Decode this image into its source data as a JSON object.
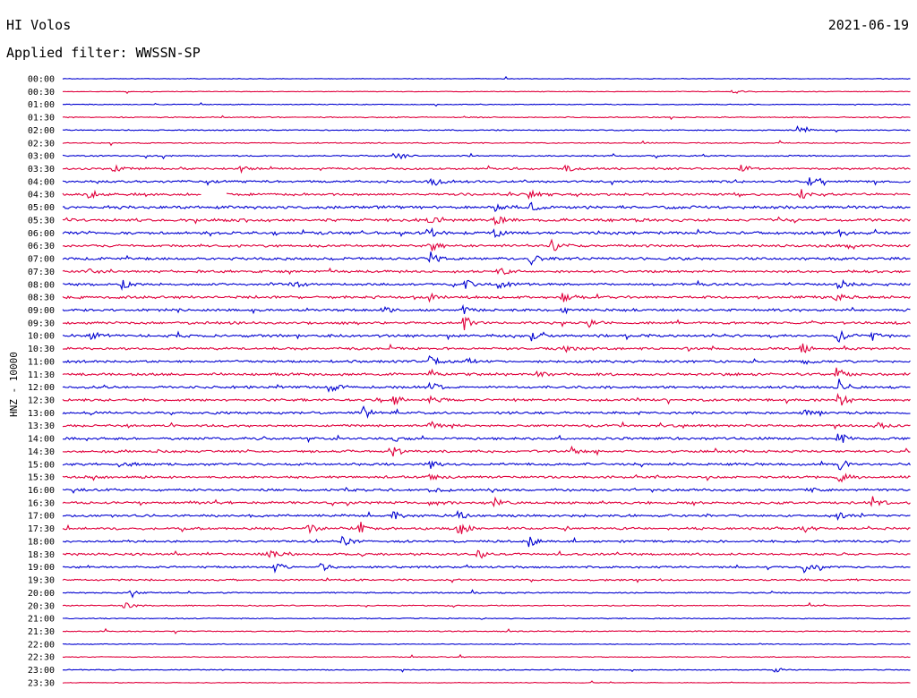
{
  "header": {
    "station": "HI Volos",
    "date": "2021-06-19",
    "filter": "Applied filter: WWSSN-SP"
  },
  "colors": {
    "even": "#0000d0",
    "odd": "#e0003c",
    "text": "#000000",
    "background": "#ffffff"
  },
  "chart_data": {
    "type": "line",
    "title": "HI Volos",
    "ylabel": "HNZ - 10000",
    "row_labels": [
      "00:00",
      "00:30",
      "01:00",
      "01:30",
      "02:00",
      "02:30",
      "03:00",
      "03:30",
      "04:00",
      "04:30",
      "05:00",
      "05:30",
      "06:00",
      "06:30",
      "07:00",
      "07:30",
      "08:00",
      "08:30",
      "09:00",
      "09:30",
      "10:00",
      "10:30",
      "11:00",
      "11:30",
      "12:00",
      "12:30",
      "13:00",
      "13:30",
      "14:00",
      "14:30",
      "15:00",
      "15:30",
      "16:00",
      "16:30",
      "17:00",
      "17:30",
      "18:00",
      "18:30",
      "19:00",
      "19:30",
      "20:00",
      "20:30",
      "21:00",
      "21:30",
      "22:00",
      "22:30",
      "23:00",
      "23:30"
    ],
    "row_duration_min": 30,
    "row_noise_level": [
      0.3,
      0.3,
      0.4,
      0.5,
      0.5,
      0.5,
      0.6,
      0.9,
      1.0,
      1.1,
      1.3,
      1.3,
      1.2,
      1.2,
      1.2,
      1.1,
      1.1,
      1.2,
      1.1,
      1.1,
      1.2,
      1.1,
      1.1,
      1.2,
      1.1,
      1.1,
      1.1,
      1.1,
      1.1,
      1.1,
      1.1,
      1.1,
      1.1,
      1.2,
      1.1,
      1.1,
      1.0,
      1.0,
      0.9,
      0.8,
      0.6,
      0.5,
      0.5,
      0.5,
      0.4,
      0.4,
      0.4,
      0.3
    ],
    "events": [
      {
        "row": "00:30",
        "t": 0.79,
        "amp": 3
      },
      {
        "row": "02:00",
        "t": 0.867,
        "amp": 5
      },
      {
        "row": "03:00",
        "t": 0.391,
        "amp": 7
      },
      {
        "row": "03:30",
        "t": 0.06,
        "amp": 4
      },
      {
        "row": "03:30",
        "t": 0.21,
        "amp": 4
      },
      {
        "row": "03:30",
        "t": 0.593,
        "amp": 5
      },
      {
        "row": "03:30",
        "t": 0.8,
        "amp": 4
      },
      {
        "row": "04:00",
        "t": 0.433,
        "amp": 7
      },
      {
        "row": "04:00",
        "t": 0.88,
        "amp": 5
      },
      {
        "row": "04:30",
        "t": 0.03,
        "amp": 6
      },
      {
        "row": "04:30",
        "t": 0.55,
        "amp": 5
      },
      {
        "row": "04:30",
        "t": 0.87,
        "amp": 6
      },
      {
        "row": "05:00",
        "t": 0.51,
        "amp": 6
      },
      {
        "row": "05:00",
        "t": 0.552,
        "amp": 5
      },
      {
        "row": "05:30",
        "t": 0.433,
        "amp": 5
      },
      {
        "row": "05:30",
        "t": 0.51,
        "amp": 6
      },
      {
        "row": "06:00",
        "t": 0.43,
        "amp": 8
      },
      {
        "row": "06:00",
        "t": 0.51,
        "amp": 5
      },
      {
        "row": "06:00",
        "t": 0.915,
        "amp": 5
      },
      {
        "row": "06:30",
        "t": 0.433,
        "amp": 7
      },
      {
        "row": "06:30",
        "t": 0.576,
        "amp": 6
      },
      {
        "row": "07:00",
        "t": 0.433,
        "amp": 7
      },
      {
        "row": "07:00",
        "t": 0.552,
        "amp": 6
      },
      {
        "row": "07:30",
        "t": 0.032,
        "amp": 4
      },
      {
        "row": "07:30",
        "t": 0.513,
        "amp": 7
      },
      {
        "row": "08:00",
        "t": 0.068,
        "amp": 6
      },
      {
        "row": "08:00",
        "t": 0.27,
        "amp": 5
      },
      {
        "row": "08:00",
        "t": 0.475,
        "amp": 6
      },
      {
        "row": "08:00",
        "t": 0.513,
        "amp": 8
      },
      {
        "row": "08:00",
        "t": 0.915,
        "amp": 6
      },
      {
        "row": "08:30",
        "t": 0.433,
        "amp": 5
      },
      {
        "row": "08:30",
        "t": 0.59,
        "amp": 5
      },
      {
        "row": "08:30",
        "t": 0.91,
        "amp": 5
      },
      {
        "row": "09:00",
        "t": 0.375,
        "amp": 5
      },
      {
        "row": "09:00",
        "t": 0.47,
        "amp": 6
      },
      {
        "row": "09:00",
        "t": 0.59,
        "amp": 4
      },
      {
        "row": "09:30",
        "t": 0.473,
        "amp": 9
      },
      {
        "row": "09:30",
        "t": 0.62,
        "amp": 4
      },
      {
        "row": "10:00",
        "t": 0.033,
        "amp": 6
      },
      {
        "row": "10:00",
        "t": 0.551,
        "amp": 6
      },
      {
        "row": "10:00",
        "t": 0.915,
        "amp": 8
      },
      {
        "row": "10:00",
        "t": 0.955,
        "amp": 5
      },
      {
        "row": "10:30",
        "t": 0.59,
        "amp": 4
      },
      {
        "row": "10:30",
        "t": 0.872,
        "amp": 6
      },
      {
        "row": "11:00",
        "t": 0.433,
        "amp": 6
      },
      {
        "row": "11:00",
        "t": 0.475,
        "amp": 5
      },
      {
        "row": "11:00",
        "t": 0.875,
        "amp": 4
      },
      {
        "row": "11:30",
        "t": 0.433,
        "amp": 6
      },
      {
        "row": "11:30",
        "t": 0.56,
        "amp": 5
      },
      {
        "row": "11:30",
        "t": 0.912,
        "amp": 8
      },
      {
        "row": "12:00",
        "t": 0.315,
        "amp": 7
      },
      {
        "row": "12:00",
        "t": 0.433,
        "amp": 6
      },
      {
        "row": "12:00",
        "t": 0.915,
        "amp": 9
      },
      {
        "row": "12:30",
        "t": 0.39,
        "amp": 5
      },
      {
        "row": "12:30",
        "t": 0.432,
        "amp": 5
      },
      {
        "row": "12:30",
        "t": 0.915,
        "amp": 10
      },
      {
        "row": "13:00",
        "t": 0.355,
        "amp": 6
      },
      {
        "row": "13:00",
        "t": 0.873,
        "amp": 5
      },
      {
        "row": "13:30",
        "t": 0.433,
        "amp": 6
      },
      {
        "row": "13:30",
        "t": 0.958,
        "amp": 5
      },
      {
        "row": "14:00",
        "t": 0.39,
        "amp": 4
      },
      {
        "row": "14:00",
        "t": 0.915,
        "amp": 7
      },
      {
        "row": "14:30",
        "t": 0.39,
        "amp": 7
      },
      {
        "row": "14:30",
        "t": 0.6,
        "amp": 5
      },
      {
        "row": "14:30",
        "t": 0.995,
        "amp": 5
      },
      {
        "row": "15:00",
        "t": 0.068,
        "amp": 4
      },
      {
        "row": "15:00",
        "t": 0.433,
        "amp": 5
      },
      {
        "row": "15:00",
        "t": 0.915,
        "amp": 6
      },
      {
        "row": "15:30",
        "t": 0.433,
        "amp": 5
      },
      {
        "row": "15:30",
        "t": 0.915,
        "amp": 6
      },
      {
        "row": "16:00",
        "t": 0.433,
        "amp": 7
      },
      {
        "row": "16:00",
        "t": 0.874,
        "amp": 6
      },
      {
        "row": "16:30",
        "t": 0.433,
        "amp": 6
      },
      {
        "row": "16:30",
        "t": 0.51,
        "amp": 5
      },
      {
        "row": "16:30",
        "t": 0.955,
        "amp": 7
      },
      {
        "row": "17:00",
        "t": 0.39,
        "amp": 5
      },
      {
        "row": "17:00",
        "t": 0.465,
        "amp": 7
      },
      {
        "row": "17:00",
        "t": 0.915,
        "amp": 5
      },
      {
        "row": "17:30",
        "t": 0.29,
        "amp": 6
      },
      {
        "row": "17:30",
        "t": 0.35,
        "amp": 6
      },
      {
        "row": "17:30",
        "t": 0.466,
        "amp": 9
      },
      {
        "row": "17:30",
        "t": 0.875,
        "amp": 5
      },
      {
        "row": "18:00",
        "t": 0.33,
        "amp": 6
      },
      {
        "row": "18:00",
        "t": 0.55,
        "amp": 6
      },
      {
        "row": "18:30",
        "t": 0.243,
        "amp": 5
      },
      {
        "row": "18:30",
        "t": 0.49,
        "amp": 5
      },
      {
        "row": "19:00",
        "t": 0.25,
        "amp": 5
      },
      {
        "row": "19:00",
        "t": 0.305,
        "amp": 5
      },
      {
        "row": "19:00",
        "t": 0.874,
        "amp": 6
      },
      {
        "row": "20:00",
        "t": 0.08,
        "amp": 6
      },
      {
        "row": "20:30",
        "t": 0.073,
        "amp": 5
      },
      {
        "row": "23:00",
        "t": 0.84,
        "amp": 3
      }
    ],
    "gaps": [
      {
        "row": "04:30",
        "t_start": 0.164,
        "t_end": 0.193
      }
    ]
  }
}
